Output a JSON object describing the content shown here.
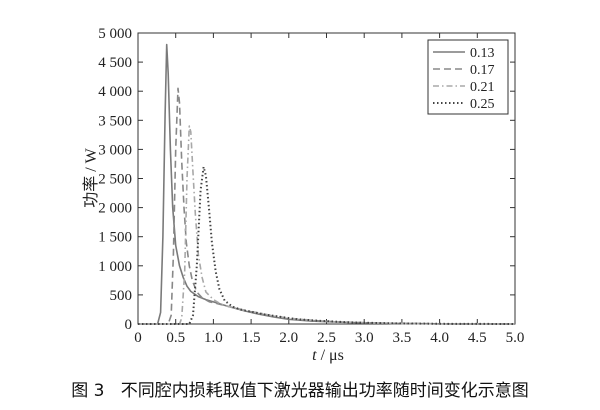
{
  "chart_data": {
    "type": "line",
    "xlabel_italic": "t",
    "xlabel_unit": " / μs",
    "ylabel": "功率 / W",
    "xlim": [
      0,
      5.0
    ],
    "ylim": [
      0,
      5000
    ],
    "x_ticks": [
      "0",
      "0.5",
      "1.0",
      "1.5",
      "2.0",
      "2.5",
      "3.0",
      "3.5",
      "4.0",
      "4.5",
      "5.0"
    ],
    "y_ticks": [
      "0",
      "500",
      "1 000",
      "1 500",
      "2 000",
      "2 500",
      "3 000",
      "3 500",
      "4 000",
      "4 500",
      "5 000"
    ],
    "grid": false,
    "legend_position": "top-right",
    "series": [
      {
        "name": "0.13",
        "color": "#7a7a7a",
        "dash": "solid",
        "x": [
          0.0,
          0.26,
          0.3,
          0.33,
          0.36,
          0.38,
          0.4,
          0.43,
          0.46,
          0.5,
          0.55,
          0.6,
          0.65,
          0.7,
          0.8,
          0.9,
          1.0,
          1.2,
          1.4,
          1.6,
          1.8,
          2.0,
          2.3,
          2.6,
          3.0,
          3.4,
          3.8,
          4.2,
          5.0
        ],
        "y": [
          0,
          0,
          200,
          1500,
          3600,
          4800,
          4300,
          3000,
          2000,
          1350,
          1000,
          800,
          650,
          560,
          470,
          420,
          380,
          300,
          230,
          170,
          120,
          80,
          50,
          35,
          20,
          10,
          5,
          2,
          0
        ]
      },
      {
        "name": "0.17",
        "color": "#888888",
        "dash": "dashed",
        "x": [
          0.0,
          0.4,
          0.44,
          0.47,
          0.5,
          0.53,
          0.55,
          0.58,
          0.61,
          0.64,
          0.68,
          0.72,
          0.78,
          0.85,
          0.95,
          1.05,
          1.2,
          1.4,
          1.6,
          1.8,
          2.0,
          2.3,
          2.6,
          3.0,
          3.4,
          3.8,
          4.2,
          5.0
        ],
        "y": [
          0,
          0,
          150,
          1200,
          3000,
          4050,
          3800,
          2800,
          2000,
          1400,
          1000,
          750,
          550,
          450,
          380,
          350,
          300,
          240,
          180,
          130,
          90,
          60,
          40,
          20,
          10,
          5,
          2,
          0
        ]
      },
      {
        "name": "0.21",
        "color": "#a8a8a8",
        "dash": "dashdot",
        "x": [
          0.0,
          0.55,
          0.58,
          0.62,
          0.65,
          0.68,
          0.7,
          0.73,
          0.76,
          0.8,
          0.85,
          0.9,
          1.0,
          1.1,
          1.2,
          1.4,
          1.6,
          1.8,
          2.0,
          2.3,
          2.6,
          3.0,
          3.4,
          3.8,
          4.2,
          5.0
        ],
        "y": [
          0,
          0,
          100,
          900,
          2500,
          3400,
          3300,
          2600,
          1900,
          1200,
          800,
          550,
          420,
          340,
          300,
          240,
          190,
          140,
          100,
          65,
          40,
          22,
          10,
          5,
          2,
          0
        ]
      },
      {
        "name": "0.25",
        "color": "#444444",
        "dash": "dotted",
        "x": [
          0.0,
          0.68,
          0.73,
          0.78,
          0.83,
          0.87,
          0.9,
          0.94,
          0.98,
          1.03,
          1.08,
          1.15,
          1.25,
          1.35,
          1.5,
          1.7,
          1.9,
          2.1,
          2.4,
          2.8,
          3.2,
          3.6,
          4.0,
          4.5,
          5.0
        ],
        "y": [
          0,
          0,
          150,
          1000,
          2300,
          2700,
          2550,
          2000,
          1400,
          900,
          600,
          400,
          300,
          250,
          210,
          160,
          120,
          85,
          55,
          30,
          15,
          8,
          3,
          1,
          0
        ]
      }
    ]
  },
  "caption": {
    "fig_number": "图 3",
    "text": "不同腔内损耗取值下激光器输出功率随时间变化示意图"
  }
}
